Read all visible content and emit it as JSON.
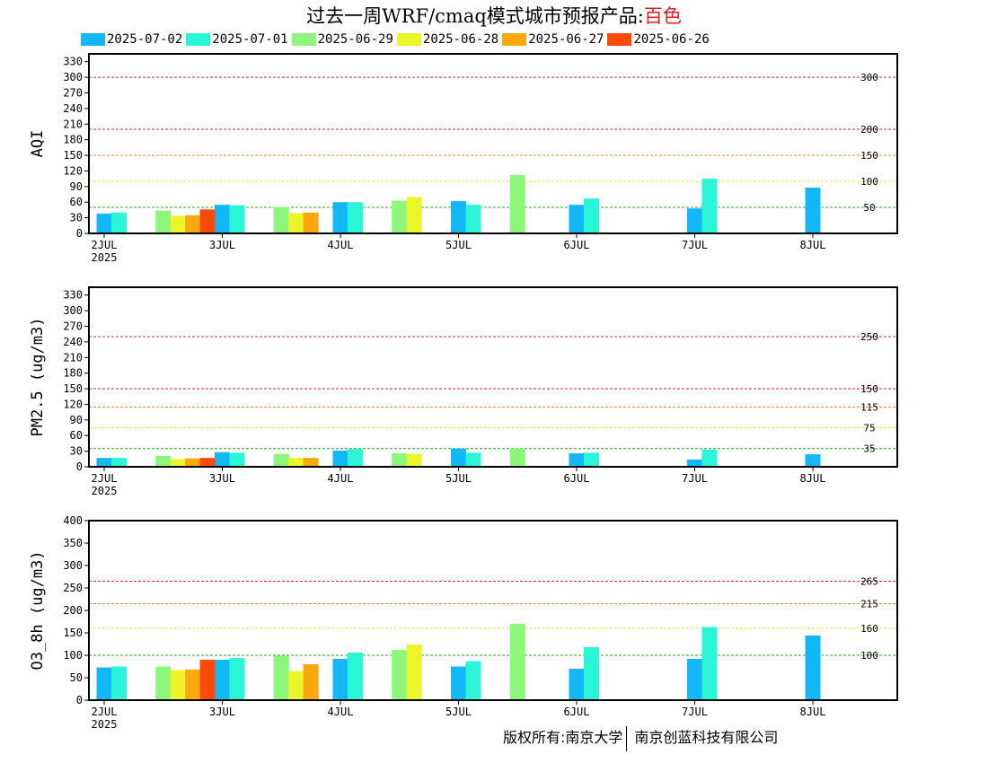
{
  "header": {
    "title": "过去一周WRF/cmaq模式城市预报产品:",
    "city": "百色"
  },
  "footer": {
    "left": "版权所有:南京大学",
    "right": "南京创蓝科技有限公司"
  },
  "colors": {
    "2025-07-02": "#12b8f6",
    "2025-07-01": "#2af5d6",
    "2025-06-29": "#8cf77a",
    "2025-06-28": "#ecf52a",
    "2025-06-27": "#fba80f",
    "2025-06-26": "#fb4a0b"
  },
  "chart_data": {
    "type": "bar",
    "legend": [
      "2025-07-02",
      "2025-07-01",
      "2025-06-29",
      "2025-06-28",
      "2025-06-27",
      "2025-06-26"
    ],
    "legend_position": "top-left",
    "x_ticks": [
      "2JUL",
      "3JUL",
      "4JUL",
      "5JUL",
      "6JUL",
      "7JUL",
      "8JUL"
    ],
    "x_year": "2025",
    "grid": false,
    "panels": [
      {
        "ylabel": "AQI",
        "ylim": [
          0,
          345
        ],
        "yticks": [
          0,
          30,
          60,
          90,
          120,
          150,
          180,
          210,
          240,
          270,
          300,
          330
        ],
        "ref_lines": [
          {
            "value": 300,
            "label": "300",
            "color": "#b0306a"
          },
          {
            "value": 200,
            "label": "200",
            "color": "#d02828"
          },
          {
            "value": 150,
            "label": "150",
            "color": "#f08020"
          },
          {
            "value": 100,
            "label": "100",
            "color": "#e8e040"
          },
          {
            "value": 50,
            "label": "50",
            "color": "#20b020"
          }
        ],
        "series": [
          {
            "name": "2025-07-02",
            "points": [
              [
                0.0,
                38
              ],
              [
                1.0,
                55
              ],
              [
                2.0,
                60
              ],
              [
                3.0,
                62
              ],
              [
                4.0,
                55
              ],
              [
                5.0,
                48
              ],
              [
                6.0,
                88
              ]
            ]
          },
          {
            "name": "2025-07-01",
            "points": [
              [
                0.125,
                40
              ],
              [
                1.125,
                54
              ],
              [
                2.125,
                60
              ],
              [
                3.125,
                55
              ],
              [
                4.125,
                67
              ],
              [
                5.125,
                105
              ]
            ]
          },
          {
            "name": "2025-06-29",
            "points": [
              [
                0.5,
                44
              ],
              [
                1.5,
                51
              ],
              [
                2.5,
                63
              ],
              [
                3.5,
                112
              ]
            ]
          },
          {
            "name": "2025-06-28",
            "points": [
              [
                0.625,
                34
              ],
              [
                1.625,
                39
              ],
              [
                2.625,
                70
              ]
            ]
          },
          {
            "name": "2025-06-27",
            "points": [
              [
                0.75,
                35
              ],
              [
                1.75,
                40
              ]
            ]
          },
          {
            "name": "2025-06-26",
            "points": [
              [
                0.875,
                46
              ]
            ]
          }
        ]
      },
      {
        "ylabel": "PM2.5 (ug/m3)",
        "ylim": [
          0,
          345
        ],
        "yticks": [
          0,
          30,
          60,
          90,
          120,
          150,
          180,
          210,
          240,
          270,
          300,
          330
        ],
        "ref_lines": [
          {
            "value": 250,
            "label": "250",
            "color": "#b0306a"
          },
          {
            "value": 150,
            "label": "150",
            "color": "#d02828"
          },
          {
            "value": 115,
            "label": "115",
            "color": "#f08020"
          },
          {
            "value": 75,
            "label": "75",
            "color": "#e8e040"
          },
          {
            "value": 35,
            "label": "35",
            "color": "#20b020"
          }
        ],
        "series": [
          {
            "name": "2025-07-02",
            "points": [
              [
                0.0,
                17
              ],
              [
                1.0,
                28
              ],
              [
                2.0,
                31
              ],
              [
                3.0,
                35
              ],
              [
                4.0,
                26
              ],
              [
                5.0,
                14
              ],
              [
                6.0,
                24
              ]
            ]
          },
          {
            "name": "2025-07-01",
            "points": [
              [
                0.125,
                17
              ],
              [
                1.125,
                27
              ],
              [
                2.125,
                34
              ],
              [
                3.125,
                27
              ],
              [
                4.125,
                27
              ],
              [
                5.125,
                33
              ]
            ]
          },
          {
            "name": "2025-06-29",
            "points": [
              [
                0.5,
                21
              ],
              [
                1.5,
                25
              ],
              [
                2.5,
                26
              ],
              [
                3.5,
                35
              ]
            ]
          },
          {
            "name": "2025-06-28",
            "points": [
              [
                0.625,
                15
              ],
              [
                1.625,
                17
              ],
              [
                2.625,
                25
              ]
            ]
          },
          {
            "name": "2025-06-27",
            "points": [
              [
                0.75,
                16
              ],
              [
                1.75,
                17
              ]
            ]
          },
          {
            "name": "2025-06-26",
            "points": [
              [
                0.875,
                17
              ]
            ]
          }
        ]
      },
      {
        "ylabel": "O3_8h (ug/m3)",
        "ylim": [
          0,
          400
        ],
        "yticks": [
          0,
          50,
          100,
          150,
          200,
          250,
          300,
          350,
          400
        ],
        "ref_lines": [
          {
            "value": 265,
            "label": "265",
            "color": "#d02828"
          },
          {
            "value": 215,
            "label": "215",
            "color": "#f08020"
          },
          {
            "value": 160,
            "label": "160",
            "color": "#e8e040"
          },
          {
            "value": 100,
            "label": "100",
            "color": "#20b020"
          }
        ],
        "series": [
          {
            "name": "2025-07-02",
            "points": [
              [
                0.0,
                73
              ],
              [
                1.0,
                90
              ],
              [
                2.0,
                92
              ],
              [
                3.0,
                75
              ],
              [
                4.0,
                70
              ],
              [
                5.0,
                92
              ],
              [
                6.0,
                144
              ]
            ]
          },
          {
            "name": "2025-07-01",
            "points": [
              [
                0.125,
                75
              ],
              [
                1.125,
                94
              ],
              [
                2.125,
                106
              ],
              [
                3.125,
                87
              ],
              [
                4.125,
                118
              ],
              [
                5.125,
                163
              ]
            ]
          },
          {
            "name": "2025-06-29",
            "points": [
              [
                0.5,
                75
              ],
              [
                1.5,
                99
              ],
              [
                2.5,
                112
              ],
              [
                3.5,
                170
              ]
            ]
          },
          {
            "name": "2025-06-28",
            "points": [
              [
                0.625,
                67
              ],
              [
                1.625,
                65
              ],
              [
                2.625,
                124
              ]
            ]
          },
          {
            "name": "2025-06-27",
            "points": [
              [
                0.75,
                68
              ],
              [
                1.75,
                80
              ]
            ]
          },
          {
            "name": "2025-06-26",
            "points": [
              [
                0.875,
                90
              ]
            ]
          }
        ]
      }
    ]
  }
}
